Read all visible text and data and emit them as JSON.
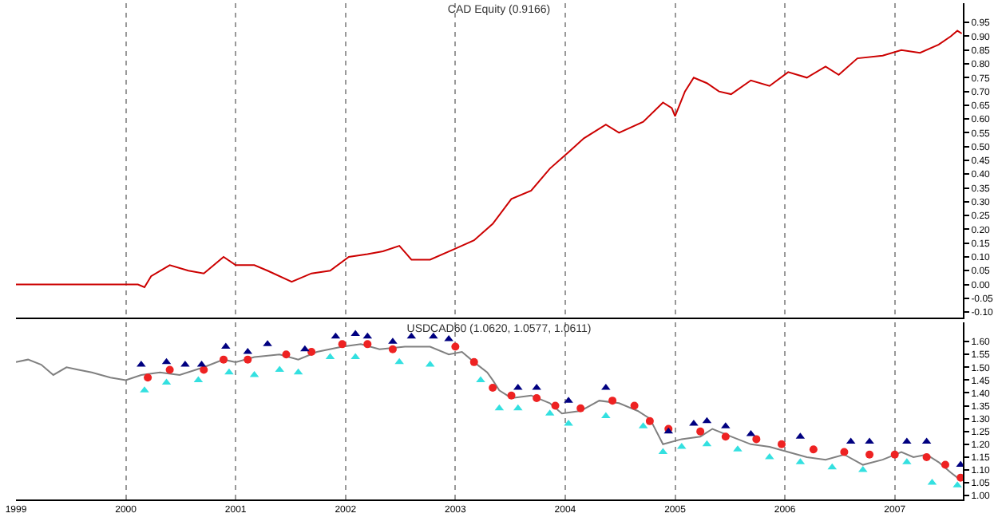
{
  "chart_data": [
    {
      "type": "line",
      "title": "CAD Equity (0.9166)",
      "tick_labels": "y",
      "grid": "x",
      "line_style": "solid",
      "xlim": [
        1999,
        2007.62
      ],
      "xticks": [
        1999,
        2000,
        2001,
        2002,
        2003,
        2004,
        2005,
        2006,
        2007
      ],
      "ylim": [
        -0.12,
        1.02
      ],
      "yticks": [
        {
          "value": -0.1,
          "label": "-0.10"
        },
        {
          "value": -0.05,
          "label": "-0.05"
        },
        {
          "value": 0,
          "label": "0.00"
        },
        {
          "value": 0.05,
          "label": "0.05"
        },
        {
          "value": 0.1,
          "label": "0.10"
        },
        {
          "value": 0.15,
          "label": "0.15"
        },
        {
          "value": 0.2,
          "label": "0.20"
        },
        {
          "value": 0.25,
          "label": "0.25"
        },
        {
          "value": 0.3,
          "label": "0.30"
        },
        {
          "value": 0.35,
          "label": "0.35"
        },
        {
          "value": 0.4,
          "label": "0.40"
        },
        {
          "value": 0.45,
          "label": "0.45"
        },
        {
          "value": 0.5,
          "label": "0.50"
        },
        {
          "value": 0.55,
          "label": "0.55"
        },
        {
          "value": 0.6,
          "label": "0.60"
        },
        {
          "value": 0.65,
          "label": "0.65"
        },
        {
          "value": 0.7,
          "label": "0.70"
        },
        {
          "value": 0.75,
          "label": "0.75"
        },
        {
          "value": 0.8,
          "label": "0.80"
        },
        {
          "value": 0.85,
          "label": "0.85"
        },
        {
          "value": 0.9,
          "label": "0.90"
        },
        {
          "value": 0.95,
          "label": "0.95"
        }
      ],
      "series": [
        {
          "color": "#cc0000",
          "marker": "none",
          "x": [
            1999.0,
            2000.11,
            2000.17,
            2000.23,
            2000.4,
            2000.57,
            2000.71,
            2000.89,
            2001.0,
            2001.17,
            2001.29,
            2001.51,
            2001.69,
            2001.86,
            2002.03,
            2002.2,
            2002.34,
            2002.49,
            2002.6,
            2002.77,
            2003.0,
            2003.17,
            2003.34,
            2003.51,
            2003.69,
            2003.86,
            2004.03,
            2004.17,
            2004.37,
            2004.49,
            2004.71,
            2004.89,
            2004.97,
            2005.0,
            2005.09,
            2005.17,
            2005.29,
            2005.4,
            2005.51,
            2005.69,
            2005.86,
            2006.03,
            2006.2,
            2006.37,
            2006.49,
            2006.66,
            2006.89,
            2007.06,
            2007.23,
            2007.4,
            2007.51,
            2007.57,
            2007.61
          ],
          "values": [
            0.0,
            0.0,
            -0.01,
            0.03,
            0.07,
            0.05,
            0.04,
            0.1,
            0.07,
            0.07,
            0.05,
            0.01,
            0.04,
            0.05,
            0.1,
            0.11,
            0.12,
            0.14,
            0.09,
            0.09,
            0.13,
            0.16,
            0.22,
            0.31,
            0.34,
            0.42,
            0.48,
            0.53,
            0.58,
            0.55,
            0.59,
            0.66,
            0.64,
            0.61,
            0.7,
            0.75,
            0.73,
            0.7,
            0.69,
            0.74,
            0.72,
            0.77,
            0.75,
            0.79,
            0.76,
            0.82,
            0.83,
            0.85,
            0.84,
            0.87,
            0.9,
            0.92,
            0.91
          ]
        }
      ]
    },
    {
      "type": "line",
      "title": "USDCAD60 (1.0620, 1.0577, 1.0611)",
      "grid": "x",
      "line_style": "solid",
      "xlim": [
        1999,
        2007.62
      ],
      "xticks": [
        1999,
        2000,
        2001,
        2002,
        2003,
        2004,
        2005,
        2006,
        2007
      ],
      "ylim": [
        0.985,
        1.675
      ],
      "yticks": [
        {
          "value": 1.0,
          "label": "1.00"
        },
        {
          "value": 1.05,
          "label": "1.05"
        },
        {
          "value": 1.1,
          "label": "1.10"
        },
        {
          "value": 1.15,
          "label": "1.15"
        },
        {
          "value": 1.2,
          "label": "1.20"
        },
        {
          "value": 1.25,
          "label": "1.25"
        },
        {
          "value": 1.3,
          "label": "1.30"
        },
        {
          "value": 1.35,
          "label": "1.35"
        },
        {
          "value": 1.4,
          "label": "1.40"
        },
        {
          "value": 1.45,
          "label": "1.45"
        },
        {
          "value": 1.5,
          "label": "1.50"
        },
        {
          "value": 1.55,
          "label": "1.55"
        },
        {
          "value": 1.6,
          "label": "1.60"
        }
      ],
      "series": [
        {
          "color": "#808080",
          "marker": "none",
          "x": [
            1999.0,
            1999.11,
            1999.23,
            1999.34,
            1999.46,
            1999.57,
            1999.69,
            1999.86,
            2000.0,
            2000.14,
            2000.31,
            2000.49,
            2000.71,
            2000.89,
            2001.0,
            2001.17,
            2001.4,
            2001.57,
            2001.74,
            2001.97,
            2002.14,
            2002.31,
            2002.54,
            2002.77,
            2002.94,
            2003.06,
            2003.17,
            2003.29,
            2003.34,
            2003.4,
            2003.51,
            2003.69,
            2003.86,
            2003.97,
            2004.14,
            2004.31,
            2004.49,
            2004.66,
            2004.77,
            2004.89,
            2005.06,
            2005.23,
            2005.34,
            2005.51,
            2005.69,
            2005.86,
            2006.03,
            2006.2,
            2006.37,
            2006.54,
            2006.71,
            2006.89,
            2007.06,
            2007.17,
            2007.29,
            2007.4,
            2007.51,
            2007.6
          ],
          "values": [
            1.52,
            1.53,
            1.51,
            1.47,
            1.5,
            1.49,
            1.48,
            1.46,
            1.45,
            1.47,
            1.48,
            1.47,
            1.5,
            1.53,
            1.52,
            1.54,
            1.55,
            1.53,
            1.56,
            1.58,
            1.59,
            1.57,
            1.58,
            1.58,
            1.55,
            1.56,
            1.52,
            1.48,
            1.45,
            1.41,
            1.38,
            1.39,
            1.36,
            1.32,
            1.33,
            1.37,
            1.36,
            1.33,
            1.3,
            1.2,
            1.22,
            1.23,
            1.26,
            1.23,
            1.2,
            1.19,
            1.17,
            1.15,
            1.14,
            1.16,
            1.12,
            1.14,
            1.17,
            1.15,
            1.16,
            1.13,
            1.09,
            1.06
          ]
        },
        {
          "type": "scatter",
          "marker": "circle",
          "color": "#ee2222",
          "x": [
            2000.2,
            2000.4,
            2000.71,
            2000.89,
            2001.11,
            2001.46,
            2001.69,
            2001.97,
            2002.2,
            2002.43,
            2003.0,
            2003.17,
            2003.34,
            2003.51,
            2003.74,
            2003.91,
            2004.14,
            2004.43,
            2004.63,
            2004.77,
            2004.94,
            2005.23,
            2005.46,
            2005.74,
            2005.97,
            2006.26,
            2006.54,
            2006.77,
            2007.0,
            2007.29,
            2007.46,
            2007.6
          ],
          "values": [
            1.46,
            1.49,
            1.49,
            1.53,
            1.53,
            1.55,
            1.56,
            1.59,
            1.59,
            1.57,
            1.58,
            1.52,
            1.42,
            1.39,
            1.38,
            1.35,
            1.34,
            1.37,
            1.35,
            1.29,
            1.26,
            1.25,
            1.23,
            1.22,
            1.2,
            1.18,
            1.17,
            1.16,
            1.16,
            1.15,
            1.12,
            1.07
          ]
        },
        {
          "type": "scatter",
          "marker": "triangle",
          "color": "#33e0e0",
          "x": [
            2000.17,
            2000.37,
            2000.66,
            2000.94,
            2001.17,
            2001.4,
            2001.57,
            2001.86,
            2002.09,
            2002.49,
            2002.77,
            2003.23,
            2003.4,
            2003.57,
            2003.86,
            2004.03,
            2004.37,
            2004.71,
            2004.89,
            2005.06,
            2005.29,
            2005.57,
            2005.86,
            2006.14,
            2006.43,
            2006.71,
            2007.11,
            2007.34,
            2007.57
          ],
          "values": [
            1.41,
            1.44,
            1.45,
            1.48,
            1.47,
            1.49,
            1.48,
            1.54,
            1.54,
            1.52,
            1.51,
            1.45,
            1.34,
            1.34,
            1.32,
            1.28,
            1.31,
            1.27,
            1.17,
            1.19,
            1.2,
            1.18,
            1.15,
            1.13,
            1.11,
            1.1,
            1.13,
            1.05,
            1.04
          ]
        },
        {
          "type": "scatter",
          "marker": "triangle",
          "color": "#000080",
          "x": [
            2000.14,
            2000.37,
            2000.54,
            2000.69,
            2000.91,
            2001.11,
            2001.29,
            2001.63,
            2001.91,
            2002.09,
            2002.2,
            2002.43,
            2002.6,
            2002.8,
            2002.94,
            2003.57,
            2003.74,
            2004.03,
            2004.37,
            2004.94,
            2005.17,
            2005.29,
            2005.46,
            2005.69,
            2006.14,
            2006.6,
            2006.77,
            2007.11,
            2007.29,
            2007.6
          ],
          "values": [
            1.51,
            1.52,
            1.51,
            1.51,
            1.58,
            1.56,
            1.59,
            1.57,
            1.62,
            1.63,
            1.62,
            1.6,
            1.62,
            1.62,
            1.61,
            1.42,
            1.42,
            1.37,
            1.42,
            1.25,
            1.28,
            1.29,
            1.27,
            1.24,
            1.23,
            1.21,
            1.21,
            1.21,
            1.21,
            1.12
          ]
        }
      ]
    }
  ]
}
